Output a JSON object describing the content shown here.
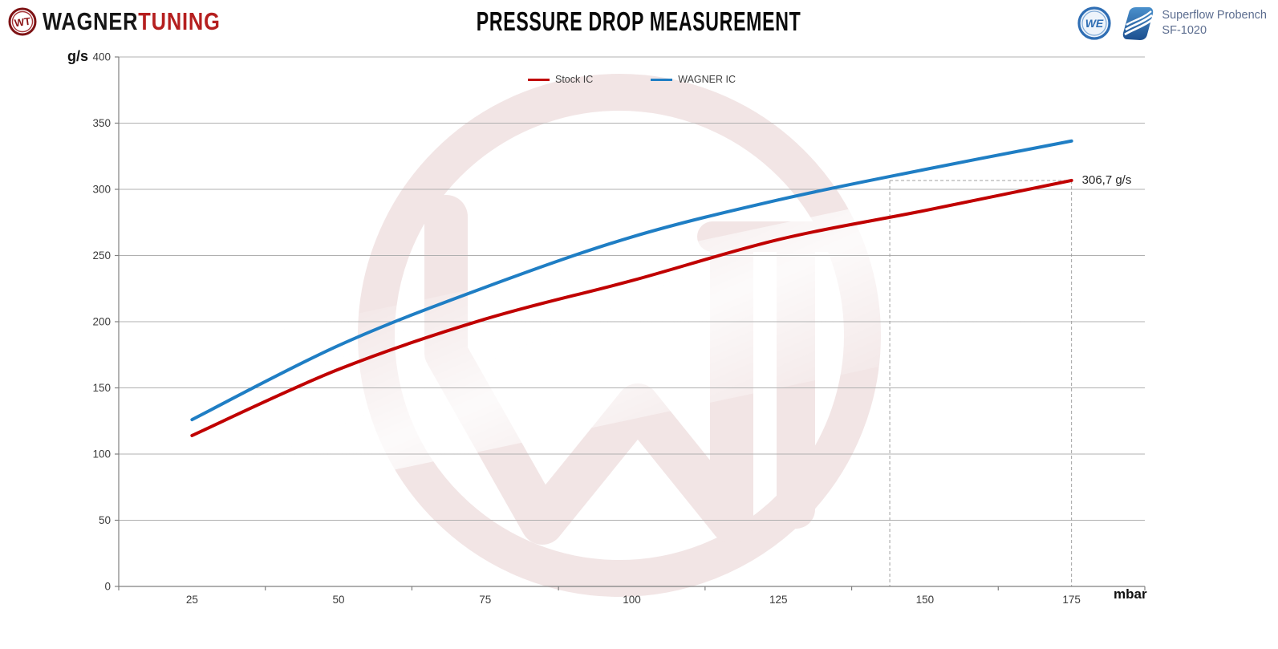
{
  "header": {
    "brand": {
      "wagner": "WAGNER",
      "tuning": "TUNING"
    },
    "bench": {
      "line1": "Superflow Probench",
      "line2": "SF-1020"
    }
  },
  "chart_data": {
    "type": "line",
    "title": "PRESSURE DROP MEASUREMENT",
    "xlabel": "mbar",
    "ylabel": "g/s",
    "x": [
      25,
      50,
      75,
      100,
      125,
      150,
      175
    ],
    "series": [
      {
        "name": "Stock IC",
        "color": "#c00000",
        "values": [
          114,
          164,
          202,
          231,
          262,
          284,
          306.7
        ]
      },
      {
        "name": "WAGNER IC",
        "color": "#1f7ec4",
        "values": [
          126,
          182,
          226,
          264,
          292,
          315,
          336.5
        ]
      }
    ],
    "ylim": [
      0,
      400
    ],
    "y_ticks": [
      0,
      50,
      100,
      150,
      200,
      250,
      300,
      350,
      400
    ],
    "grid": "horizontal",
    "legend_position": "top-center",
    "annotation": {
      "label": "306,7 g/s",
      "value": 306.7,
      "stock_at_mbar": 175,
      "wagner_reaches_at_mbar": 144
    }
  },
  "colors": {
    "stock_line": "#c00000",
    "wagner_line": "#1f7ec4",
    "gridline": "#b0b0b0",
    "axis": "#808080",
    "annotation_dash": "#a0a0a0",
    "bench_text": "#5d6e90",
    "brand_red": "#b51f1f"
  }
}
